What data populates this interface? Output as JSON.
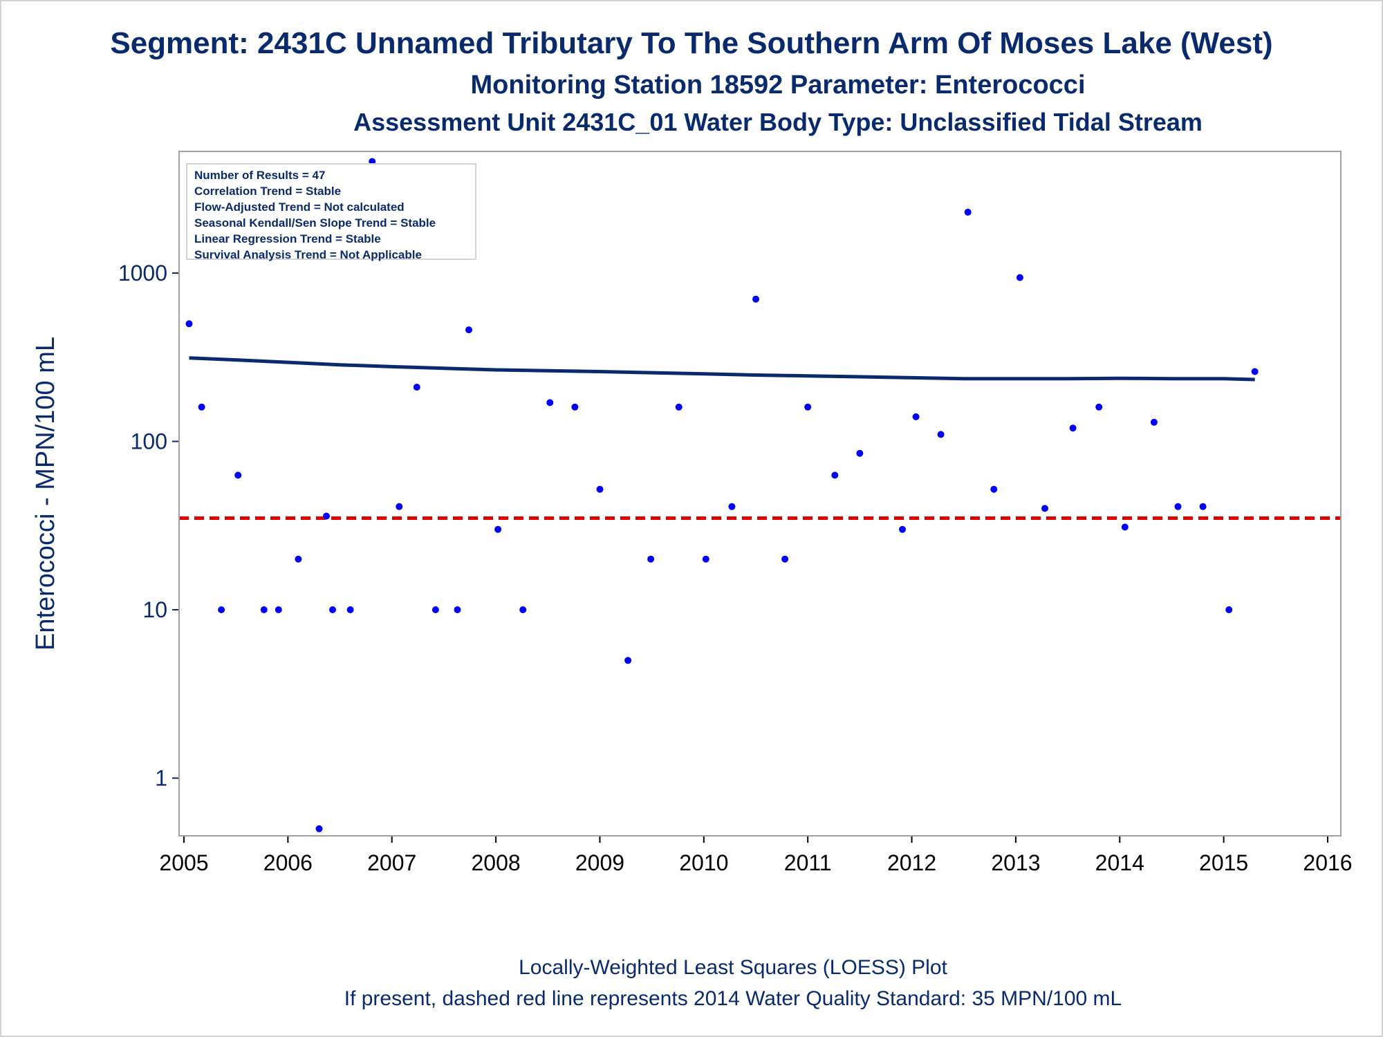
{
  "title": "Segment: 2431C  Unnamed Tributary To The Southern Arm Of Moses Lake (West)",
  "subtitle1": "Monitoring Station 18592 Parameter: Enterococci",
  "subtitle2": "Assessment Unit 2431C_01   Water Body Type: Unclassified Tidal Stream",
  "footer1": "Locally-Weighted Least Squares (LOESS) Plot",
  "footer2": "If present, dashed red line represents 2014 Water Quality Standard: 35 MPN/100 mL",
  "stats": [
    "Number of Results = 47",
    "Correlation Trend = Stable",
    "Flow-Adjusted Trend = Not calculated",
    "Seasonal Kendall/Sen Slope Trend = Stable",
    "Linear Regression Trend = Stable",
    "Survival Analysis Trend = Not Applicable"
  ],
  "colors": {
    "points": "#0000ff",
    "loess": "#0a2a6e",
    "standard": "#e00000",
    "text": "#0a2a6e"
  },
  "chart_data": {
    "type": "scatter",
    "ylabel": "Enterococci - MPN/100 mL",
    "xlabel": "",
    "yscale": "log",
    "xlim": [
      2005,
      2016
    ],
    "ylim": [
      0.5,
      5000
    ],
    "x_ticks": [
      "2005",
      "2006",
      "2007",
      "2008",
      "2009",
      "2010",
      "2011",
      "2012",
      "2013",
      "2014",
      "2015",
      "2016"
    ],
    "y_ticks": [
      {
        "value": 1,
        "label": "1"
      },
      {
        "value": 10,
        "label": "10"
      },
      {
        "value": 100,
        "label": "100"
      },
      {
        "value": 1000,
        "label": "1000"
      }
    ],
    "standard_line": 35,
    "points": [
      [
        2005.05,
        500
      ],
      [
        2005.17,
        160
      ],
      [
        2005.36,
        10
      ],
      [
        2005.52,
        63
      ],
      [
        2005.77,
        10
      ],
      [
        2005.91,
        10
      ],
      [
        2006.1,
        20
      ],
      [
        2006.3,
        0.5
      ],
      [
        2006.37,
        36
      ],
      [
        2006.43,
        10
      ],
      [
        2006.6,
        10
      ],
      [
        2006.81,
        4600
      ],
      [
        2007.07,
        41
      ],
      [
        2007.24,
        210
      ],
      [
        2007.42,
        10
      ],
      [
        2007.63,
        10
      ],
      [
        2007.74,
        460
      ],
      [
        2008.02,
        30
      ],
      [
        2008.26,
        10
      ],
      [
        2008.52,
        170
      ],
      [
        2008.76,
        160
      ],
      [
        2009.0,
        52
      ],
      [
        2009.27,
        5
      ],
      [
        2009.49,
        20
      ],
      [
        2009.76,
        160
      ],
      [
        2010.02,
        20
      ],
      [
        2010.27,
        41
      ],
      [
        2010.5,
        700
      ],
      [
        2010.78,
        20
      ],
      [
        2011.0,
        160
      ],
      [
        2011.26,
        63
      ],
      [
        2011.5,
        85
      ],
      [
        2011.91,
        30
      ],
      [
        2012.04,
        140
      ],
      [
        2012.28,
        110
      ],
      [
        2012.54,
        2300
      ],
      [
        2012.79,
        52
      ],
      [
        2013.04,
        940
      ],
      [
        2013.28,
        40
      ],
      [
        2013.55,
        120
      ],
      [
        2013.8,
        160
      ],
      [
        2014.05,
        31
      ],
      [
        2014.33,
        130
      ],
      [
        2014.56,
        41
      ],
      [
        2014.8,
        41
      ],
      [
        2015.05,
        10
      ],
      [
        2015.3,
        260
      ]
    ],
    "loess": [
      [
        2005.05,
        313
      ],
      [
        2005.5,
        305
      ],
      [
        2006.0,
        295
      ],
      [
        2006.5,
        285
      ],
      [
        2007.0,
        278
      ],
      [
        2007.5,
        272
      ],
      [
        2008.0,
        266
      ],
      [
        2008.5,
        263
      ],
      [
        2009.0,
        260
      ],
      [
        2009.5,
        256
      ],
      [
        2010.0,
        252
      ],
      [
        2010.5,
        248
      ],
      [
        2011.0,
        245
      ],
      [
        2011.5,
        242
      ],
      [
        2012.0,
        239
      ],
      [
        2012.5,
        236
      ],
      [
        2013.0,
        236
      ],
      [
        2013.5,
        236
      ],
      [
        2014.0,
        237
      ],
      [
        2014.5,
        236
      ],
      [
        2015.0,
        236
      ],
      [
        2015.3,
        233
      ]
    ]
  }
}
